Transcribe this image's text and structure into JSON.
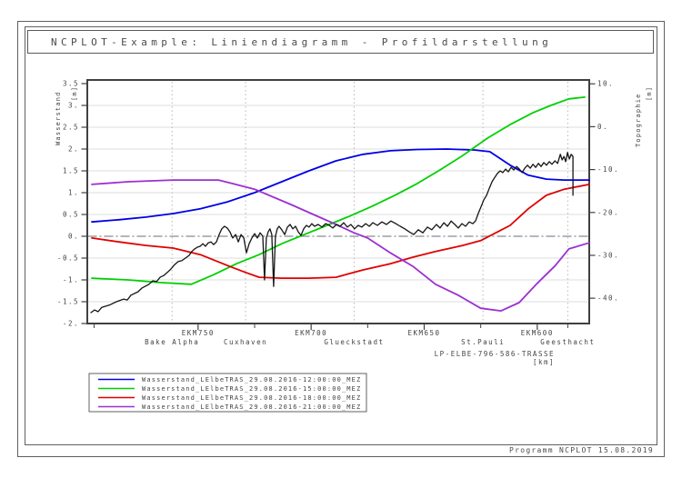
{
  "page": {
    "title": "NCPLOT-Example: Liniendiagramm - Profildarstellung",
    "footer": "Programm NCPLOT 15.08.2019"
  },
  "chart_data": {
    "type": "line",
    "title": "NCPLOT-Example: Liniendiagramm - Profildarstellung",
    "grid": true,
    "legend_position": "bottom-left",
    "x_axis": {
      "label": "LP-ELBE-796-586-TRASSE",
      "unit": "[km]",
      "direction": "decreasing",
      "range": [
        799,
        577
      ],
      "major_ticks": [
        750,
        700,
        650,
        600
      ],
      "major_tick_labels": [
        "EKM750",
        "EKM700",
        "EKM650",
        "EKM600"
      ],
      "minor_ticks": [
        796,
        725,
        675,
        625,
        586.5
      ]
    },
    "y_left": {
      "label": "Wasserstand",
      "unit": "[m]",
      "range": [
        3.58,
        -2.0
      ],
      "tick_values": [
        3.5,
        3,
        2.5,
        2,
        1.5,
        1,
        0.5,
        0,
        -0.5,
        -1,
        -1.5,
        -2
      ],
      "tick_labels": [
        "3.5",
        "3.",
        "2.5",
        "2.",
        "1.5",
        "1.",
        "0.5",
        "0.",
        "-0.5",
        "-1.",
        "-1.5",
        "-2."
      ],
      "gridline_values": [
        3,
        2.5,
        2,
        1.5,
        1,
        0.5,
        -0.5,
        -1,
        -1.5
      ],
      "zero_line_value": 0
    },
    "y_right": {
      "label": "Topographie",
      "unit": "[m]",
      "range": [
        10.9,
        -45.9
      ],
      "tick_values": [
        10,
        0,
        -10,
        -20,
        -30,
        -40
      ],
      "tick_labels": [
        "10.",
        "0.",
        "-10.",
        "-20.",
        "-30.",
        "-40."
      ]
    },
    "stations": [
      {
        "name": "Bake Alpha",
        "km": 761.5
      },
      {
        "name": "Cuxhaven",
        "km": 729
      },
      {
        "name": "Glueckstadt",
        "km": 681
      },
      {
        "name": "St.Pauli",
        "km": 624
      },
      {
        "name": "Geesthacht",
        "km": 586.5
      }
    ],
    "series": [
      {
        "name": "Wasserstand_LElbeTRAS_29.08.2016-12:00:00_MEZ",
        "color": "#0000e6",
        "width": 1.8,
        "in_legend": true,
        "points": [
          [
            797,
            0.33
          ],
          [
            785,
            0.38
          ],
          [
            773,
            0.44
          ],
          [
            761,
            0.52
          ],
          [
            749,
            0.63
          ],
          [
            737,
            0.79
          ],
          [
            725,
            1.0
          ],
          [
            713,
            1.25
          ],
          [
            701,
            1.5
          ],
          [
            689,
            1.73
          ],
          [
            677,
            1.88
          ],
          [
            665,
            1.96
          ],
          [
            653,
            1.99
          ],
          [
            640,
            2.0
          ],
          [
            628,
            1.98
          ],
          [
            621,
            1.94
          ],
          [
            612,
            1.63
          ],
          [
            604,
            1.4
          ],
          [
            596,
            1.31
          ],
          [
            588,
            1.29
          ],
          [
            577,
            1.29
          ]
        ]
      },
      {
        "name": "Wasserstand_LElbeTRAS_29.08.2016-15:00:00_MEZ",
        "color": "#00d000",
        "width": 1.8,
        "in_legend": true,
        "points": [
          [
            797,
            -0.96
          ],
          [
            781,
            -1.0
          ],
          [
            767,
            -1.06
          ],
          [
            753,
            -1.1
          ],
          [
            743,
            -0.88
          ],
          [
            733,
            -0.63
          ],
          [
            723,
            -0.42
          ],
          [
            713,
            -0.17
          ],
          [
            703,
            0.04
          ],
          [
            693,
            0.25
          ],
          [
            683,
            0.46
          ],
          [
            673,
            0.69
          ],
          [
            663,
            0.94
          ],
          [
            653,
            1.21
          ],
          [
            643,
            1.52
          ],
          [
            633,
            1.85
          ],
          [
            622,
            2.25
          ],
          [
            612,
            2.56
          ],
          [
            602,
            2.83
          ],
          [
            594,
            3.0
          ],
          [
            586,
            3.15
          ],
          [
            579,
            3.19
          ]
        ]
      },
      {
        "name": "Wasserstand_LElbeTRAS_29.08.2016-18:00:00_MEZ",
        "color": "#e00000",
        "width": 1.8,
        "in_legend": true,
        "points": [
          [
            797,
            -0.04
          ],
          [
            785,
            -0.13
          ],
          [
            773,
            -0.21
          ],
          [
            761,
            -0.27
          ],
          [
            749,
            -0.42
          ],
          [
            737,
            -0.67
          ],
          [
            729,
            -0.83
          ],
          [
            723,
            -0.94
          ],
          [
            713,
            -0.96
          ],
          [
            701,
            -0.96
          ],
          [
            689,
            -0.94
          ],
          [
            677,
            -0.77
          ],
          [
            665,
            -0.63
          ],
          [
            655,
            -0.48
          ],
          [
            645,
            -0.35
          ],
          [
            633,
            -0.21
          ],
          [
            625,
            -0.1
          ],
          [
            612,
            0.25
          ],
          [
            604,
            0.63
          ],
          [
            596,
            0.94
          ],
          [
            588,
            1.08
          ],
          [
            577,
            1.19
          ]
        ]
      },
      {
        "name": "Wasserstand_LElbeTRAS_29.08.2016-21:00:00_MEZ",
        "color": "#9b30d0",
        "width": 1.8,
        "in_legend": true,
        "points": [
          [
            797,
            1.19
          ],
          [
            781,
            1.25
          ],
          [
            761,
            1.29
          ],
          [
            741,
            1.29
          ],
          [
            725,
            1.08
          ],
          [
            709,
            0.73
          ],
          [
            699,
            0.5
          ],
          [
            689,
            0.27
          ],
          [
            681,
            0.08
          ],
          [
            675,
            -0.04
          ],
          [
            665,
            -0.38
          ],
          [
            655,
            -0.69
          ],
          [
            645,
            -1.1
          ],
          [
            635,
            -1.35
          ],
          [
            625,
            -1.65
          ],
          [
            616,
            -1.71
          ],
          [
            608,
            -1.52
          ],
          [
            600,
            -1.08
          ],
          [
            592,
            -0.67
          ],
          [
            586,
            -0.29
          ],
          [
            577,
            -0.15
          ]
        ]
      },
      {
        "name": "",
        "color": "#151515",
        "width": 1.3,
        "in_legend": false,
        "points": [
          [
            797.4,
            -1.75
          ],
          [
            795.8,
            -1.69
          ],
          [
            794.2,
            -1.73
          ],
          [
            792.6,
            -1.63
          ],
          [
            789.3,
            -1.58
          ],
          [
            786.1,
            -1.5
          ],
          [
            782.9,
            -1.44
          ],
          [
            781.3,
            -1.46
          ],
          [
            779.7,
            -1.35
          ],
          [
            776.5,
            -1.27
          ],
          [
            774.9,
            -1.19
          ],
          [
            771.7,
            -1.1
          ],
          [
            770,
            -1.02
          ],
          [
            768.4,
            -1.04
          ],
          [
            766.8,
            -0.94
          ],
          [
            765.2,
            -0.9
          ],
          [
            763.6,
            -0.83
          ],
          [
            762,
            -0.75
          ],
          [
            760.4,
            -0.65
          ],
          [
            758.8,
            -0.58
          ],
          [
            757.2,
            -0.56
          ],
          [
            755.6,
            -0.5
          ],
          [
            754,
            -0.44
          ],
          [
            752.8,
            -0.35
          ],
          [
            751.5,
            -0.29
          ],
          [
            750.3,
            -0.25
          ],
          [
            749.1,
            -0.23
          ],
          [
            747.9,
            -0.17
          ],
          [
            746.7,
            -0.23
          ],
          [
            745.5,
            -0.15
          ],
          [
            744.3,
            -0.13
          ],
          [
            743.1,
            -0.19
          ],
          [
            741.9,
            -0.13
          ],
          [
            740.7,
            0.04
          ],
          [
            739.5,
            0.17
          ],
          [
            738.3,
            0.23
          ],
          [
            737.1,
            0.19
          ],
          [
            735.9,
            0.1
          ],
          [
            734.7,
            -0.04
          ],
          [
            733.4,
            0.04
          ],
          [
            732.2,
            -0.13
          ],
          [
            731,
            0.04
          ],
          [
            729.8,
            -0.04
          ],
          [
            728.6,
            -0.38
          ],
          [
            727.4,
            -0.17
          ],
          [
            726.2,
            -0.04
          ],
          [
            725,
            0.06
          ],
          [
            723.8,
            -0.04
          ],
          [
            722.6,
            0.08
          ],
          [
            721.4,
            0.0
          ],
          [
            720.6,
            -1.0
          ],
          [
            719.8,
            -0.04
          ],
          [
            719,
            0.1
          ],
          [
            718.2,
            0.17
          ],
          [
            717.4,
            0.04
          ],
          [
            716.6,
            -1.15
          ],
          [
            715.8,
            0.0
          ],
          [
            715,
            0.17
          ],
          [
            714.2,
            0.23
          ],
          [
            713,
            0.15
          ],
          [
            711.7,
            0.04
          ],
          [
            710.5,
            0.21
          ],
          [
            709.3,
            0.27
          ],
          [
            708.1,
            0.17
          ],
          [
            706.9,
            0.23
          ],
          [
            705.7,
            0.1
          ],
          [
            704.5,
            0.02
          ],
          [
            703.3,
            0.17
          ],
          [
            702.1,
            0.25
          ],
          [
            700.9,
            0.21
          ],
          [
            699.7,
            0.29
          ],
          [
            698.5,
            0.23
          ],
          [
            696.9,
            0.27
          ],
          [
            695.2,
            0.21
          ],
          [
            693.6,
            0.29
          ],
          [
            692,
            0.25
          ],
          [
            690.4,
            0.19
          ],
          [
            688.8,
            0.27
          ],
          [
            687.2,
            0.23
          ],
          [
            685.6,
            0.31
          ],
          [
            684,
            0.21
          ],
          [
            682.4,
            0.27
          ],
          [
            680.8,
            0.17
          ],
          [
            679.2,
            0.25
          ],
          [
            677.6,
            0.21
          ],
          [
            675.9,
            0.29
          ],
          [
            674.3,
            0.23
          ],
          [
            672.7,
            0.31
          ],
          [
            670.7,
            0.25
          ],
          [
            668.7,
            0.33
          ],
          [
            666.7,
            0.27
          ],
          [
            664.7,
            0.35
          ],
          [
            662.6,
            0.29
          ],
          [
            660.6,
            0.23
          ],
          [
            658.6,
            0.17
          ],
          [
            656.6,
            0.1
          ],
          [
            654.6,
            0.04
          ],
          [
            652.6,
            0.15
          ],
          [
            650.6,
            0.08
          ],
          [
            648.6,
            0.21
          ],
          [
            646.6,
            0.15
          ],
          [
            644.6,
            0.27
          ],
          [
            643,
            0.19
          ],
          [
            641.3,
            0.31
          ],
          [
            639.7,
            0.23
          ],
          [
            638.1,
            0.35
          ],
          [
            636.5,
            0.27
          ],
          [
            634.9,
            0.19
          ],
          [
            633.3,
            0.29
          ],
          [
            631.7,
            0.23
          ],
          [
            630.1,
            0.33
          ],
          [
            628.5,
            0.29
          ],
          [
            627.3,
            0.35
          ],
          [
            626.1,
            0.52
          ],
          [
            624.9,
            0.67
          ],
          [
            623.7,
            0.83
          ],
          [
            622.4,
            0.94
          ],
          [
            621.2,
            1.1
          ],
          [
            620,
            1.25
          ],
          [
            618.8,
            1.35
          ],
          [
            617.6,
            1.44
          ],
          [
            616.4,
            1.5
          ],
          [
            615.2,
            1.46
          ],
          [
            614,
            1.54
          ],
          [
            612.8,
            1.48
          ],
          [
            611.6,
            1.58
          ],
          [
            610.4,
            1.52
          ],
          [
            609.1,
            1.6
          ],
          [
            607.9,
            1.54
          ],
          [
            606.7,
            1.46
          ],
          [
            605.5,
            1.56
          ],
          [
            604.3,
            1.63
          ],
          [
            603.1,
            1.56
          ],
          [
            601.9,
            1.65
          ],
          [
            600.7,
            1.58
          ],
          [
            599.5,
            1.67
          ],
          [
            598.3,
            1.6
          ],
          [
            597.1,
            1.69
          ],
          [
            595.9,
            1.63
          ],
          [
            594.7,
            1.71
          ],
          [
            593.5,
            1.65
          ],
          [
            592.2,
            1.73
          ],
          [
            591,
            1.67
          ],
          [
            589.8,
            1.88
          ],
          [
            589,
            1.75
          ],
          [
            588.2,
            1.83
          ],
          [
            587.4,
            1.71
          ],
          [
            586.6,
            1.92
          ],
          [
            585.8,
            1.77
          ],
          [
            585,
            1.88
          ],
          [
            584.2,
            1.83
          ],
          [
            584.2,
            0.94
          ]
        ]
      }
    ],
    "colors": {
      "frame": "#606060",
      "axis": "#404040",
      "text": "#444444",
      "gridline": "#dcdcdc",
      "station_line": "#b8b8b8",
      "zero_line": "#828c96"
    }
  }
}
